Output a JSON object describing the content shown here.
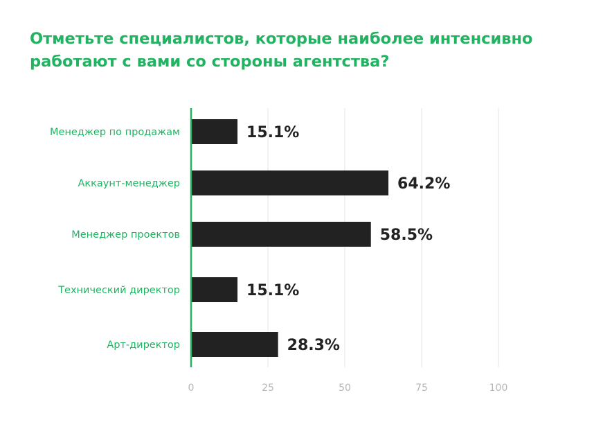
{
  "chart_data": {
    "type": "bar",
    "orientation": "horizontal",
    "title": "Отметьте специалистов, которые наиболее интенсивно работают с вами со стороны агентства?",
    "categories": [
      "Менеджер по продажам",
      "Аккаунт-менеджер",
      "Менеджер проектов",
      "Технический директор",
      "Арт-директор"
    ],
    "values": [
      15.1,
      64.2,
      58.5,
      15.1,
      28.3
    ],
    "value_labels": [
      "15.1%",
      "64.2%",
      "58.5%",
      "15.1%",
      "28.3%"
    ],
    "xlim": [
      0,
      100
    ],
    "x_ticks": [
      0,
      25,
      50,
      75,
      100
    ],
    "x_tick_labels": [
      "0",
      "25",
      "50",
      "75",
      "100"
    ],
    "grid": true,
    "colors": {
      "bar": "#222222",
      "axis": "#22b362",
      "category_label": "#22b362",
      "title": "#22b362",
      "grid": "#e6e6e6",
      "tick_label": "#b5b5b5"
    }
  }
}
